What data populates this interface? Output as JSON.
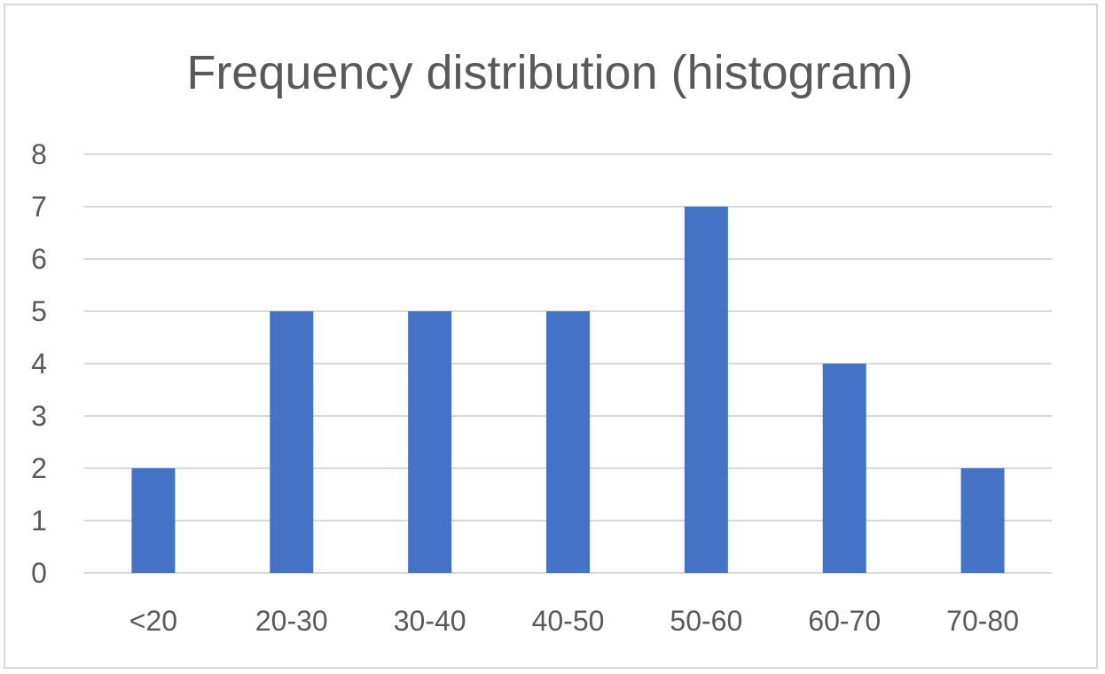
{
  "chart_data": {
    "type": "bar",
    "title": "Frequency distribution (histogram)",
    "xlabel": "",
    "ylabel": "",
    "categories": [
      "<20",
      "20-30",
      "30-40",
      "40-50",
      "50-60",
      "60-70",
      "70-80"
    ],
    "values": [
      2,
      5,
      5,
      5,
      7,
      4,
      2
    ],
    "ylim": [
      0,
      8
    ],
    "yticks": [
      "0",
      "1",
      "2",
      "3",
      "4",
      "5",
      "6",
      "7",
      "8"
    ],
    "grid": true,
    "legend": "none",
    "bar_color": "#4472C4",
    "grid_color": "#d9d9d9",
    "text_color": "#595959"
  }
}
